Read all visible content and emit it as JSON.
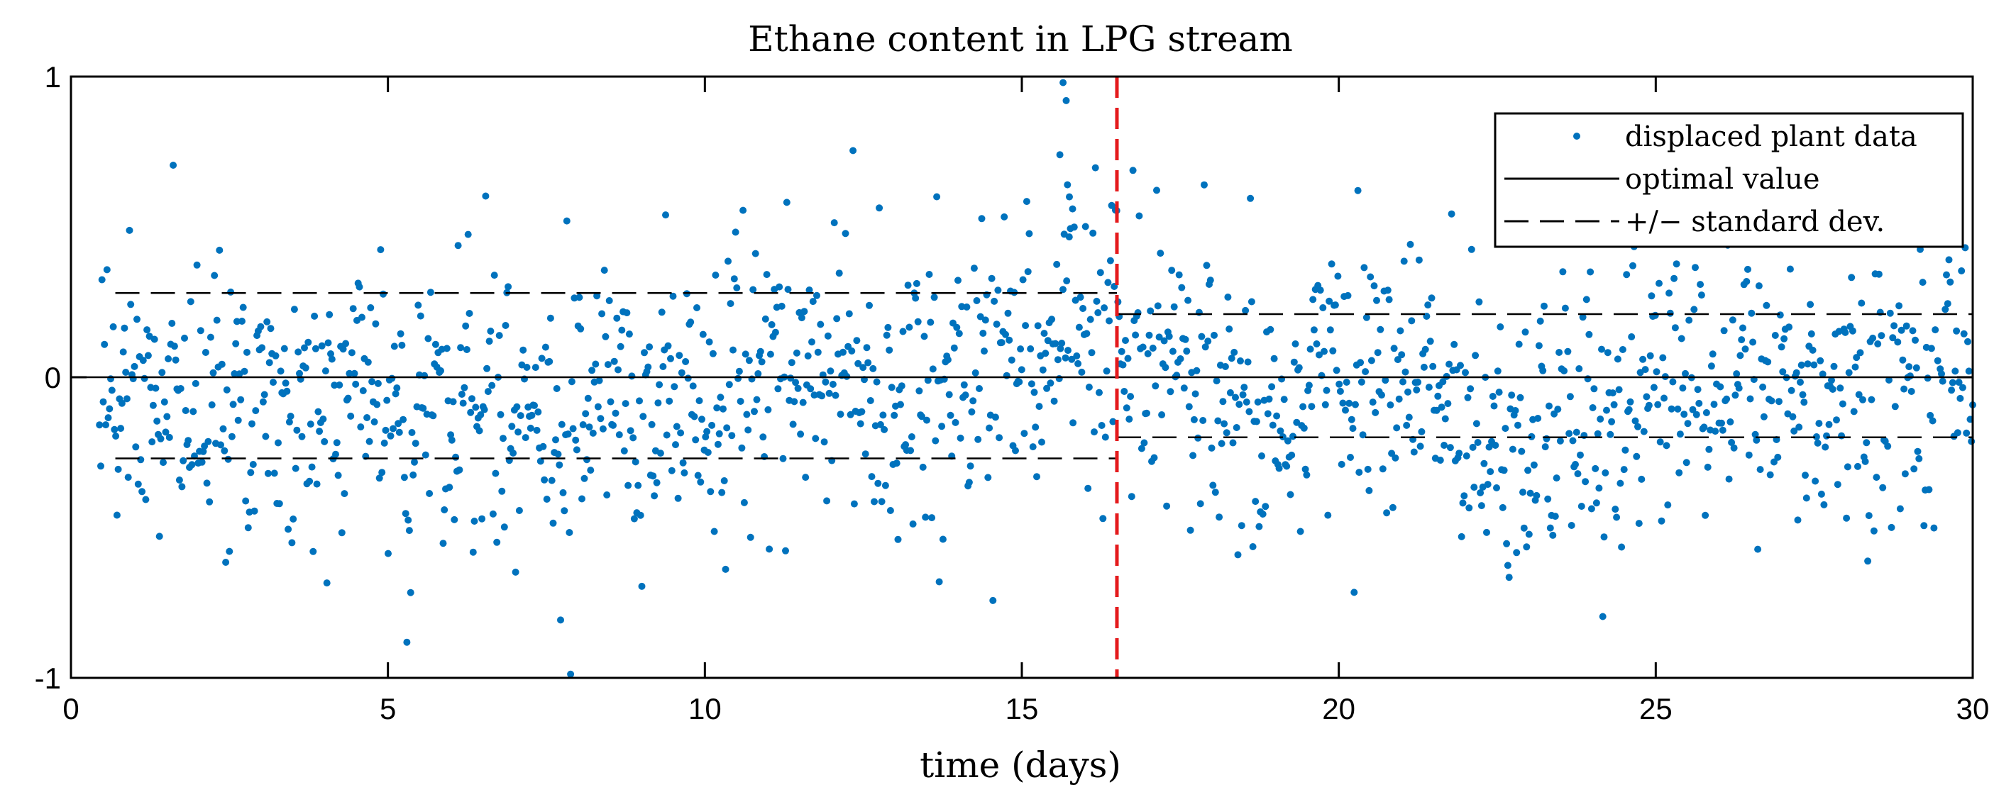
{
  "chart_data": {
    "type": "scatter",
    "title": "Ethane content in LPG stream",
    "xlabel": "time (days)",
    "ylabel": "",
    "xlim": [
      0,
      30
    ],
    "ylim": [
      -1,
      1
    ],
    "xticks": [
      0,
      5,
      10,
      15,
      20,
      25,
      30
    ],
    "xtick_labels": [
      "0",
      "5",
      "10",
      "15",
      "20",
      "25",
      "30"
    ],
    "yticks": [
      -1,
      0,
      1
    ],
    "ytick_labels": [
      "-1",
      "0",
      "1"
    ],
    "grid": false,
    "legend_position": "top-right",
    "legend": [
      {
        "label": "displaced plant data",
        "style": "marker"
      },
      {
        "label": "optimal value",
        "style": "solid"
      },
      {
        "label": "+/− standard dev.",
        "style": "dashed"
      }
    ],
    "colors": {
      "points": "#0072BD",
      "lines": "#000000",
      "changepoint": "#E41A1C"
    },
    "series": [
      {
        "name": "displaced plant data",
        "type": "scatter",
        "x_range": [
          0.45,
          30
        ],
        "n_points": 1500,
        "mean": -0.06,
        "spread": 0.25,
        "min": -1.0,
        "max": 1.0
      },
      {
        "name": "optimal value",
        "type": "hline",
        "y": 0,
        "x_range": [
          0,
          30
        ]
      },
      {
        "name": "+/− standard dev. (period 1)",
        "type": "hline",
        "values": [
          0.28,
          -0.27
        ],
        "x_range": [
          0.7,
          16.5
        ]
      },
      {
        "name": "+/− standard dev. (period 2)",
        "type": "hline",
        "values": [
          0.21,
          -0.2
        ],
        "x_range": [
          16.5,
          30
        ]
      }
    ],
    "vline": {
      "x": 16.5,
      "style": "dashed",
      "color": "#E41A1C"
    }
  }
}
